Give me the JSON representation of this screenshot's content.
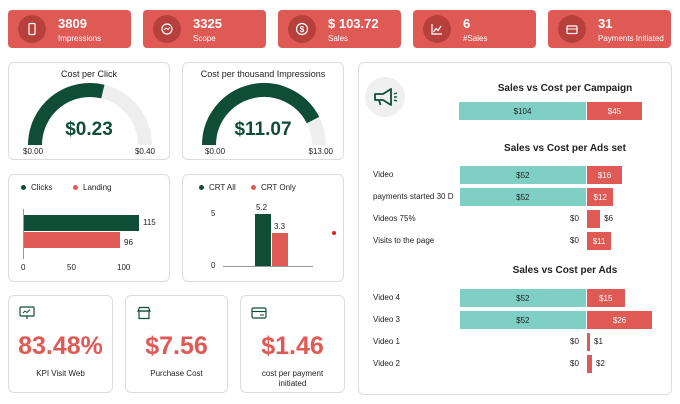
{
  "kpis": [
    {
      "value": "3809",
      "label": "Impressions",
      "icon": "phone-icon"
    },
    {
      "value": "3325",
      "label": "Scope",
      "icon": "chart-circle-icon"
    },
    {
      "value": "$ 103.72",
      "label": "Sales",
      "icon": "dollar-icon"
    },
    {
      "value": "6",
      "label": "#Sales",
      "icon": "line-chart-icon"
    },
    {
      "value": "31",
      "label": "Payments Initiated",
      "icon": "wallet-icon"
    }
  ],
  "cpc": {
    "title": "Cost per Click",
    "value": "$0.23",
    "min": "$0.00",
    "max": "$0.40",
    "ratio": 0.575
  },
  "cpm": {
    "title": "Cost per thousand Impressions",
    "value": "$11.07",
    "min": "$0.00",
    "max": "$13.00",
    "ratio": 0.85
  },
  "clicks_chart": {
    "type": "bar",
    "legend": [
      "Clicks",
      "Landing"
    ],
    "series": [
      {
        "name": "Clicks",
        "values": [
          115
        ]
      },
      {
        "name": "Landing",
        "values": [
          96
        ]
      }
    ],
    "ticks": [
      "0",
      "50",
      "100"
    ],
    "xlim": [
      0,
      115
    ],
    "value_labels": [
      "115",
      "96"
    ]
  },
  "crt_chart": {
    "type": "bar",
    "legend": [
      "CRT All",
      "CRT Only"
    ],
    "series": [
      {
        "name": "CRT All",
        "values": [
          5.2
        ]
      },
      {
        "name": "CRT Only",
        "values": [
          3.3
        ]
      }
    ],
    "ticks": [
      "0",
      "5"
    ],
    "ylim": [
      0,
      5.2
    ],
    "value_labels": [
      "5.2",
      "3.3"
    ]
  },
  "kpi_visit": {
    "value": "83.48%",
    "label": "KPI Visit Web"
  },
  "purchase_cost": {
    "value": "$7.56",
    "label": "Purchase Cost"
  },
  "cost_payment": {
    "value": "$1.46",
    "label": "cost per payment initiated"
  },
  "campaign": {
    "title": "Sales vs Cost per Campaign",
    "rows": [
      {
        "label": "",
        "sales": 104,
        "cost": 45,
        "sales_label": "$104",
        "cost_label": "$45"
      }
    ]
  },
  "adsset": {
    "title": "Sales vs Cost per Ads set",
    "rows": [
      {
        "label": "Video",
        "sales": 52,
        "cost": 16,
        "sales_label": "$52",
        "cost_label": "$16"
      },
      {
        "label": "payments started 30 D",
        "sales": 52,
        "cost": 12,
        "sales_label": "$52",
        "cost_label": "$12"
      },
      {
        "label": "Videos 75%",
        "sales": 0,
        "cost": 6,
        "sales_label": "$0",
        "cost_label": "$6"
      },
      {
        "label": "Visits to the page",
        "sales": 0,
        "cost": 11,
        "sales_label": "$0",
        "cost_label": "$11"
      }
    ]
  },
  "ads": {
    "title": "Sales vs Cost per Ads",
    "rows": [
      {
        "label": "Video 4",
        "sales": 52,
        "cost": 15,
        "sales_label": "$52",
        "cost_label": "$15"
      },
      {
        "label": "Video 3",
        "sales": 52,
        "cost": 26,
        "sales_label": "$52",
        "cost_label": "$26"
      },
      {
        "label": "Video 1",
        "sales": 0,
        "cost": 1,
        "sales_label": "$0",
        "cost_label": "$1"
      },
      {
        "label": "Video 2",
        "sales": 0,
        "cost": 2,
        "sales_label": "$0",
        "cost_label": "$2"
      }
    ]
  },
  "colors": {
    "accent": "#e05a55",
    "dark_green": "#0f4d37",
    "teal": "#7fcfc4",
    "gauge_bg": "#eeeeee"
  }
}
